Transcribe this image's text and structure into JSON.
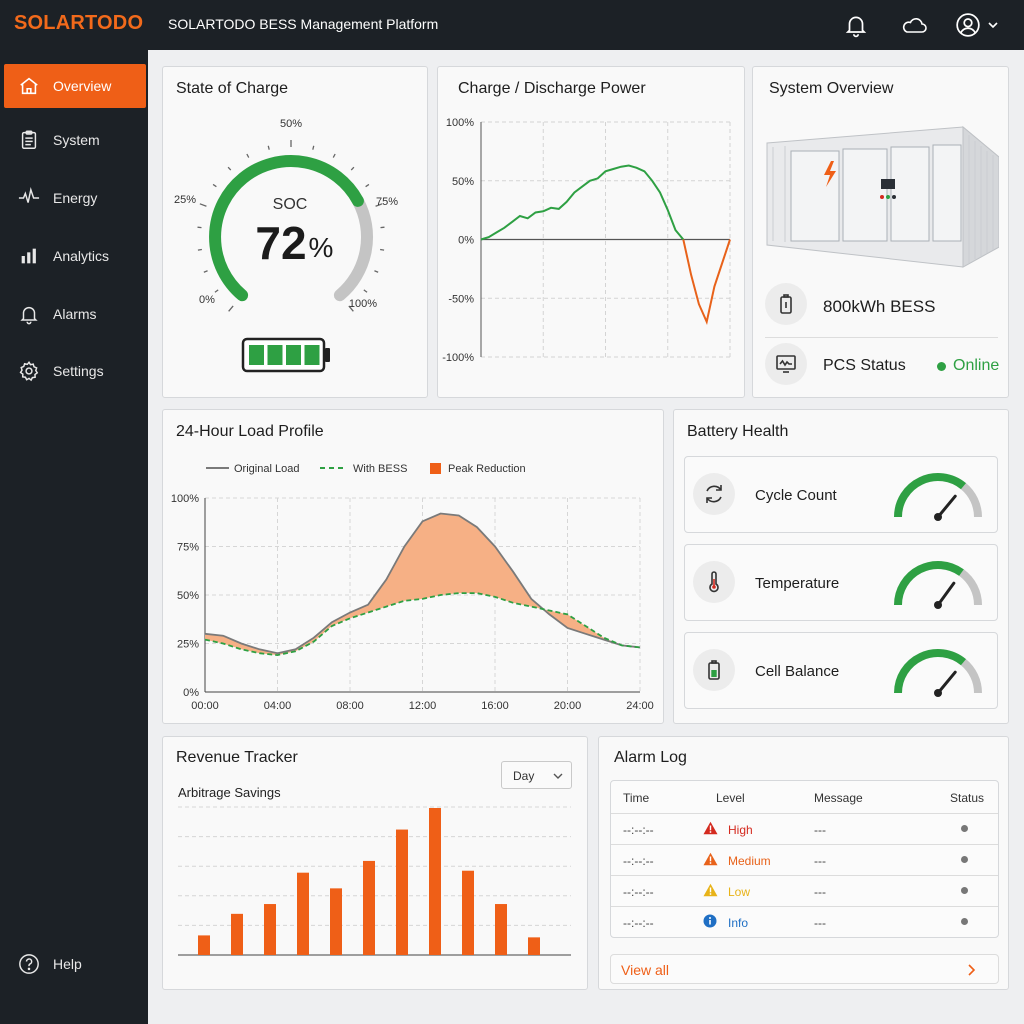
{
  "brand": {
    "logo_text": "SOLARTODO",
    "app_title": "SOLARTODO BESS Management Platform",
    "accent": "#ef5f17"
  },
  "header_icons": [
    "bell-icon",
    "cloud-icon",
    "user-icon",
    "chevron-down-icon"
  ],
  "sidebar": {
    "items": [
      {
        "label": "Overview",
        "icon": "home-icon",
        "active": true
      },
      {
        "label": "System",
        "icon": "clipboard-icon"
      },
      {
        "label": "Energy",
        "icon": "pulse-icon"
      },
      {
        "label": "Analytics",
        "icon": "bar-chart-icon"
      },
      {
        "label": "Alarms",
        "icon": "bell-icon"
      },
      {
        "label": "Settings",
        "icon": "gear-icon"
      }
    ],
    "help_label": "Help"
  },
  "soc": {
    "title": "State of Charge",
    "label": "SOC",
    "value": "72",
    "unit": "%",
    "level": 0.72,
    "ticks": {
      "p0": "0%",
      "p25": "25%",
      "p50": "50%",
      "p75": "75%",
      "p100": "100%"
    },
    "battery_bars": 4
  },
  "power": {
    "title": "Charge / Discharge Power",
    "yticks": [
      "100%",
      "50%",
      "0%",
      "-50%",
      "-100%"
    ]
  },
  "system": {
    "title": "System Overview",
    "capacity": "800kWh BESS",
    "pcs_label": "PCS Status",
    "pcs_status": "Online",
    "status_color": "#2ea043"
  },
  "load": {
    "title": "24-Hour Load Profile",
    "legend": {
      "original": "Original Load",
      "bess": "With BESS",
      "peak": "Peak Reduction"
    },
    "yticks": [
      "100%",
      "75%",
      "50%",
      "25%",
      "0%"
    ],
    "xticks": [
      "00:00",
      "04:00",
      "08:00",
      "12:00",
      "16:00",
      "20:00",
      "24:00"
    ]
  },
  "health": {
    "title": "Battery Health",
    "items": [
      {
        "label": "Cycle Count",
        "icon": "cycle-icon",
        "level": 0.72
      },
      {
        "label": "Temperature",
        "icon": "thermometer-icon",
        "level": 0.7
      },
      {
        "label": "Cell Balance",
        "icon": "battery-icon",
        "level": 0.72
      }
    ]
  },
  "revenue": {
    "title": "Revenue Tracker",
    "subtitle": "Arbitrage Savings",
    "period": "Day"
  },
  "alarms": {
    "title": "Alarm Log",
    "headers": {
      "time": "Time",
      "level": "Level",
      "message": "Message",
      "status": "Status"
    },
    "rows": [
      {
        "time": "--:--:--",
        "level": "High",
        "message": "---",
        "color": "#d42a1f"
      },
      {
        "time": "--:--:--",
        "level": "Medium",
        "message": "---",
        "color": "#e8621a"
      },
      {
        "time": "--:--:--",
        "level": "Low",
        "message": "---",
        "color": "#e8b318"
      },
      {
        "time": "--:--:--",
        "level": "Info",
        "message": "---",
        "color": "#1f6fc4"
      }
    ],
    "view_all": "View all"
  },
  "chart_data": [
    {
      "type": "line",
      "title": "Charge / Discharge Power",
      "ylim": [
        -100,
        100
      ],
      "yticks": [
        "100%",
        "50%",
        "0%",
        "-50%",
        "-100%"
      ],
      "x": [
        0,
        1,
        2,
        3,
        4,
        5,
        6,
        7,
        8,
        9,
        10,
        11,
        12,
        13,
        14,
        15,
        16,
        17,
        18,
        19,
        20,
        21,
        22,
        23,
        24,
        25,
        26,
        27,
        28,
        29,
        30,
        31,
        32
      ],
      "series": [
        {
          "color": "#2ea043",
          "values": [
            0,
            2,
            6,
            10,
            15,
            20,
            18,
            23,
            24,
            27,
            26,
            32,
            40,
            45,
            50,
            52,
            58,
            60,
            62,
            63,
            61,
            58,
            50,
            40,
            25,
            8,
            0,
            null,
            null,
            null,
            null,
            null,
            null
          ]
        },
        {
          "color": "#e8621a",
          "values": [
            null,
            null,
            null,
            null,
            null,
            null,
            null,
            null,
            null,
            null,
            null,
            null,
            null,
            null,
            null,
            null,
            null,
            null,
            null,
            null,
            null,
            null,
            null,
            null,
            null,
            null,
            0,
            -30,
            -55,
            -70,
            -40,
            -20,
            0
          ]
        }
      ]
    },
    {
      "type": "line",
      "title": "24-Hour Load Profile",
      "ylim": [
        0,
        100
      ],
      "x": [
        0,
        1,
        2,
        3,
        4,
        5,
        6,
        7,
        8,
        9,
        10,
        11,
        12,
        13,
        14,
        15,
        16,
        17,
        18,
        19,
        20,
        21,
        22,
        23,
        24
      ],
      "xticks": [
        "00:00",
        "04:00",
        "08:00",
        "12:00",
        "16:00",
        "20:00",
        "24:00"
      ],
      "series": [
        {
          "name": "Original Load",
          "color": "#7a7a7a",
          "values": [
            30,
            29,
            25,
            22,
            20,
            22,
            28,
            36,
            41,
            45,
            58,
            75,
            88,
            92,
            91,
            85,
            75,
            62,
            48,
            40,
            33,
            30,
            27,
            24,
            23
          ]
        },
        {
          "name": "With BESS",
          "color": "#2ea043",
          "values": [
            27,
            25,
            22,
            20,
            19,
            21,
            26,
            34,
            38,
            41,
            44,
            47,
            48,
            50,
            51,
            51,
            49,
            46,
            44,
            42,
            40,
            34,
            28,
            24,
            23
          ]
        }
      ],
      "fill": {
        "name": "Peak Reduction",
        "color": "#f6b085"
      }
    },
    {
      "type": "bar",
      "title": "Arbitrage Savings",
      "categories": [
        "1",
        "2",
        "3",
        "4",
        "5",
        "6",
        "7",
        "8",
        "9",
        "10",
        "11"
      ],
      "values": [
        10,
        21,
        26,
        42,
        34,
        48,
        64,
        75,
        43,
        26,
        9
      ],
      "ylim": [
        0,
        75
      ]
    }
  ]
}
